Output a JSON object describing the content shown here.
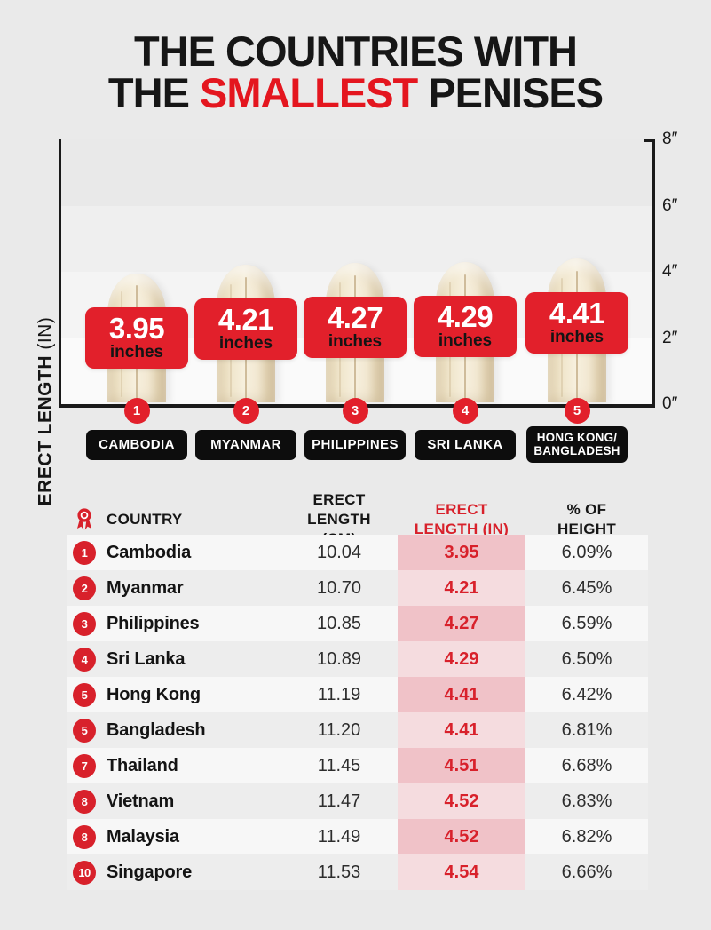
{
  "page": {
    "background": "#eaeaea",
    "accent_red": "#e2202b",
    "text_red": "#d8212b",
    "pill_black": "#0d0d0d",
    "pink_dark": "#f0c2c8",
    "pink_light": "#f5dcdf",
    "title_line1": "THE COUNTRIES WITH",
    "title_line2_prefix": "THE ",
    "title_line2_highlight": "SMALLEST",
    "title_line2_suffix": " PENISES"
  },
  "chart_data": {
    "type": "bar",
    "title": "THE COUNTRIES WITH THE SMALLEST PENISES",
    "ylabel_main": "ERECT LENGTH ",
    "ylabel_unit": "(IN)",
    "xlabel": "",
    "ylim": [
      0,
      8
    ],
    "ytick_values": [
      0,
      2,
      4,
      6,
      8
    ],
    "ytick_labels": [
      "0″",
      "2″",
      "4″",
      "6″",
      "8″"
    ],
    "grid": "horizontal-bands",
    "legend_position": "none",
    "categories": [
      "CAMBODIA",
      "MYANMAR",
      "PHILIPPINES",
      "SRI LANKA",
      "HONG KONG/\nBANGLADESH"
    ],
    "values": [
      3.95,
      4.21,
      4.27,
      4.29,
      4.41
    ],
    "value_labels": [
      "3.95",
      "4.21",
      "4.27",
      "4.29",
      "4.41"
    ],
    "value_unit": "inches",
    "ranks": [
      "1",
      "2",
      "3",
      "4",
      "5"
    ]
  },
  "table": {
    "headers": {
      "rank_icon": "medal-icon",
      "country": "COUNTRY",
      "cm_line1": "ERECT",
      "cm_line2": "LENGTH (CM)",
      "in_line1": "ERECT",
      "in_line2": "LENGTH (IN)",
      "pct_line1": "% OF",
      "pct_line2": "HEIGHT"
    },
    "rows": [
      {
        "rank": "1",
        "country": "Cambodia",
        "cm": "10.04",
        "in": "3.95",
        "pct": "6.09%"
      },
      {
        "rank": "2",
        "country": "Myanmar",
        "cm": "10.70",
        "in": "4.21",
        "pct": "6.45%"
      },
      {
        "rank": "3",
        "country": "Philippines",
        "cm": "10.85",
        "in": "4.27",
        "pct": "6.59%"
      },
      {
        "rank": "4",
        "country": "Sri Lanka",
        "cm": "10.89",
        "in": "4.29",
        "pct": "6.50%"
      },
      {
        "rank": "5",
        "country": "Hong Kong",
        "cm": "11.19",
        "in": "4.41",
        "pct": "6.42%"
      },
      {
        "rank": "5",
        "country": "Bangladesh",
        "cm": "11.20",
        "in": "4.41",
        "pct": "6.81%"
      },
      {
        "rank": "7",
        "country": "Thailand",
        "cm": "11.45",
        "in": "4.51",
        "pct": "6.68%"
      },
      {
        "rank": "8",
        "country": "Vietnam",
        "cm": "11.47",
        "in": "4.52",
        "pct": "6.83%"
      },
      {
        "rank": "8",
        "country": "Malaysia",
        "cm": "11.49",
        "in": "4.52",
        "pct": "6.82%"
      },
      {
        "rank": "10",
        "country": "Singapore",
        "cm": "11.53",
        "in": "4.54",
        "pct": "6.66%"
      }
    ]
  }
}
